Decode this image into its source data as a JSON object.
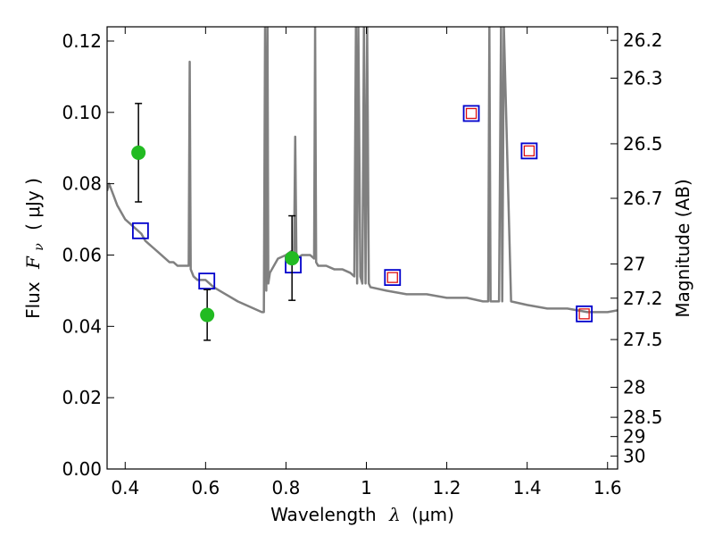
{
  "chart_data": {
    "type": "line",
    "xlabel": "Wavelength",
    "xlabel_symbol": "λ",
    "xlabel_unit": "(μm)",
    "ylabel": "Flux",
    "ylabel_symbol": "F",
    "ylabel_symbol_sub": "ν",
    "ylabel_unit": "( μJy )",
    "y2label": "Magnitude (AB)",
    "xlim": [
      0.355,
      1.625
    ],
    "ylim": [
      0.0,
      0.124
    ],
    "x_ticks": [
      0.4,
      0.6,
      0.8,
      1.0,
      1.2,
      1.4,
      1.6
    ],
    "x_tick_labels": [
      "0.4",
      "0.6",
      "0.8",
      "1",
      "1.2",
      "1.4",
      "1.6"
    ],
    "y_ticks": [
      0.0,
      0.02,
      0.04,
      0.06,
      0.08,
      0.1,
      0.12
    ],
    "y_tick_labels": [
      "0.00",
      "0.02",
      "0.04",
      "0.06",
      "0.08",
      "0.10",
      "0.12"
    ],
    "y2_tick_labels": [
      "26.2",
      "26.3",
      "26.5",
      "26.7",
      "27",
      "27.2",
      "27.5",
      "28",
      "28.5",
      "29",
      "30"
    ],
    "y2_tick_flux": [
      0.1202,
      0.1096,
      0.0912,
      0.0759,
      0.0575,
      0.0479,
      0.0363,
      0.0229,
      0.0145,
      0.0091,
      0.0036
    ],
    "grid": false,
    "colors": {
      "model_line": "#808080",
      "green_points": "#22bb22",
      "blue_squares": "#0000cc",
      "red_squares": "#dd1111",
      "errorbar": "#000000"
    },
    "series": [
      {
        "style": "line",
        "x": [
          0.355,
          0.36,
          0.37,
          0.38,
          0.39,
          0.4,
          0.41,
          0.42,
          0.43,
          0.44,
          0.45,
          0.46,
          0.47,
          0.48,
          0.49,
          0.5,
          0.51,
          0.52,
          0.53,
          0.54,
          0.55,
          0.558,
          0.5605,
          0.563,
          0.57,
          0.58,
          0.6,
          0.62,
          0.65,
          0.68,
          0.7,
          0.72,
          0.74,
          0.745,
          0.748,
          0.751,
          0.754,
          0.756,
          0.76,
          0.78,
          0.8,
          0.812,
          0.82,
          0.823,
          0.826,
          0.84,
          0.86,
          0.87,
          0.8725,
          0.875,
          0.88,
          0.9,
          0.92,
          0.94,
          0.96,
          0.97,
          0.974,
          0.977,
          0.98,
          0.985,
          0.99,
          0.994,
          0.998,
          1.002,
          1.006,
          1.01,
          1.05,
          1.1,
          1.15,
          1.2,
          1.25,
          1.29,
          1.303,
          1.306,
          1.309,
          1.33,
          1.335,
          1.338,
          1.342,
          1.36,
          1.4,
          1.45,
          1.5,
          1.55,
          1.6,
          1.625
        ],
        "y": [
          0.078,
          0.08,
          0.077,
          0.074,
          0.072,
          0.07,
          0.069,
          0.068,
          0.067,
          0.066,
          0.064,
          0.063,
          0.062,
          0.061,
          0.06,
          0.059,
          0.058,
          0.058,
          0.057,
          0.057,
          0.057,
          0.057,
          0.1142,
          0.056,
          0.054,
          0.053,
          0.053,
          0.051,
          0.049,
          0.047,
          0.046,
          0.045,
          0.044,
          0.044,
          0.124,
          0.05,
          0.124,
          0.052,
          0.055,
          0.059,
          0.06,
          0.061,
          0.06,
          0.0932,
          0.059,
          0.06,
          0.06,
          0.059,
          0.124,
          0.058,
          0.057,
          0.057,
          0.056,
          0.056,
          0.055,
          0.054,
          0.124,
          0.052,
          0.124,
          0.054,
          0.052,
          0.124,
          0.052,
          0.124,
          0.052,
          0.051,
          0.05,
          0.049,
          0.049,
          0.048,
          0.048,
          0.047,
          0.047,
          0.124,
          0.047,
          0.047,
          0.124,
          0.047,
          0.124,
          0.047,
          0.046,
          0.045,
          0.045,
          0.044,
          0.044,
          0.0445
        ]
      },
      {
        "style": "square_blue",
        "x": [
          0.438,
          0.603,
          0.818,
          1.065,
          1.261,
          1.405,
          1.542
        ],
        "y": [
          0.0668,
          0.0527,
          0.0572,
          0.0537,
          0.0997,
          0.0892,
          0.0435
        ]
      },
      {
        "style": "square_red",
        "x": [
          1.065,
          1.261,
          1.405,
          1.542
        ],
        "y": [
          0.0537,
          0.0997,
          0.0892,
          0.0435
        ]
      },
      {
        "style": "circle_green",
        "x": [
          0.433,
          0.604,
          0.815
        ],
        "y": [
          0.0887,
          0.0432,
          0.0591
        ],
        "yerr_low": [
          0.0749,
          0.0361,
          0.0473
        ],
        "yerr_high": [
          0.1025,
          0.0503,
          0.071
        ]
      }
    ]
  }
}
